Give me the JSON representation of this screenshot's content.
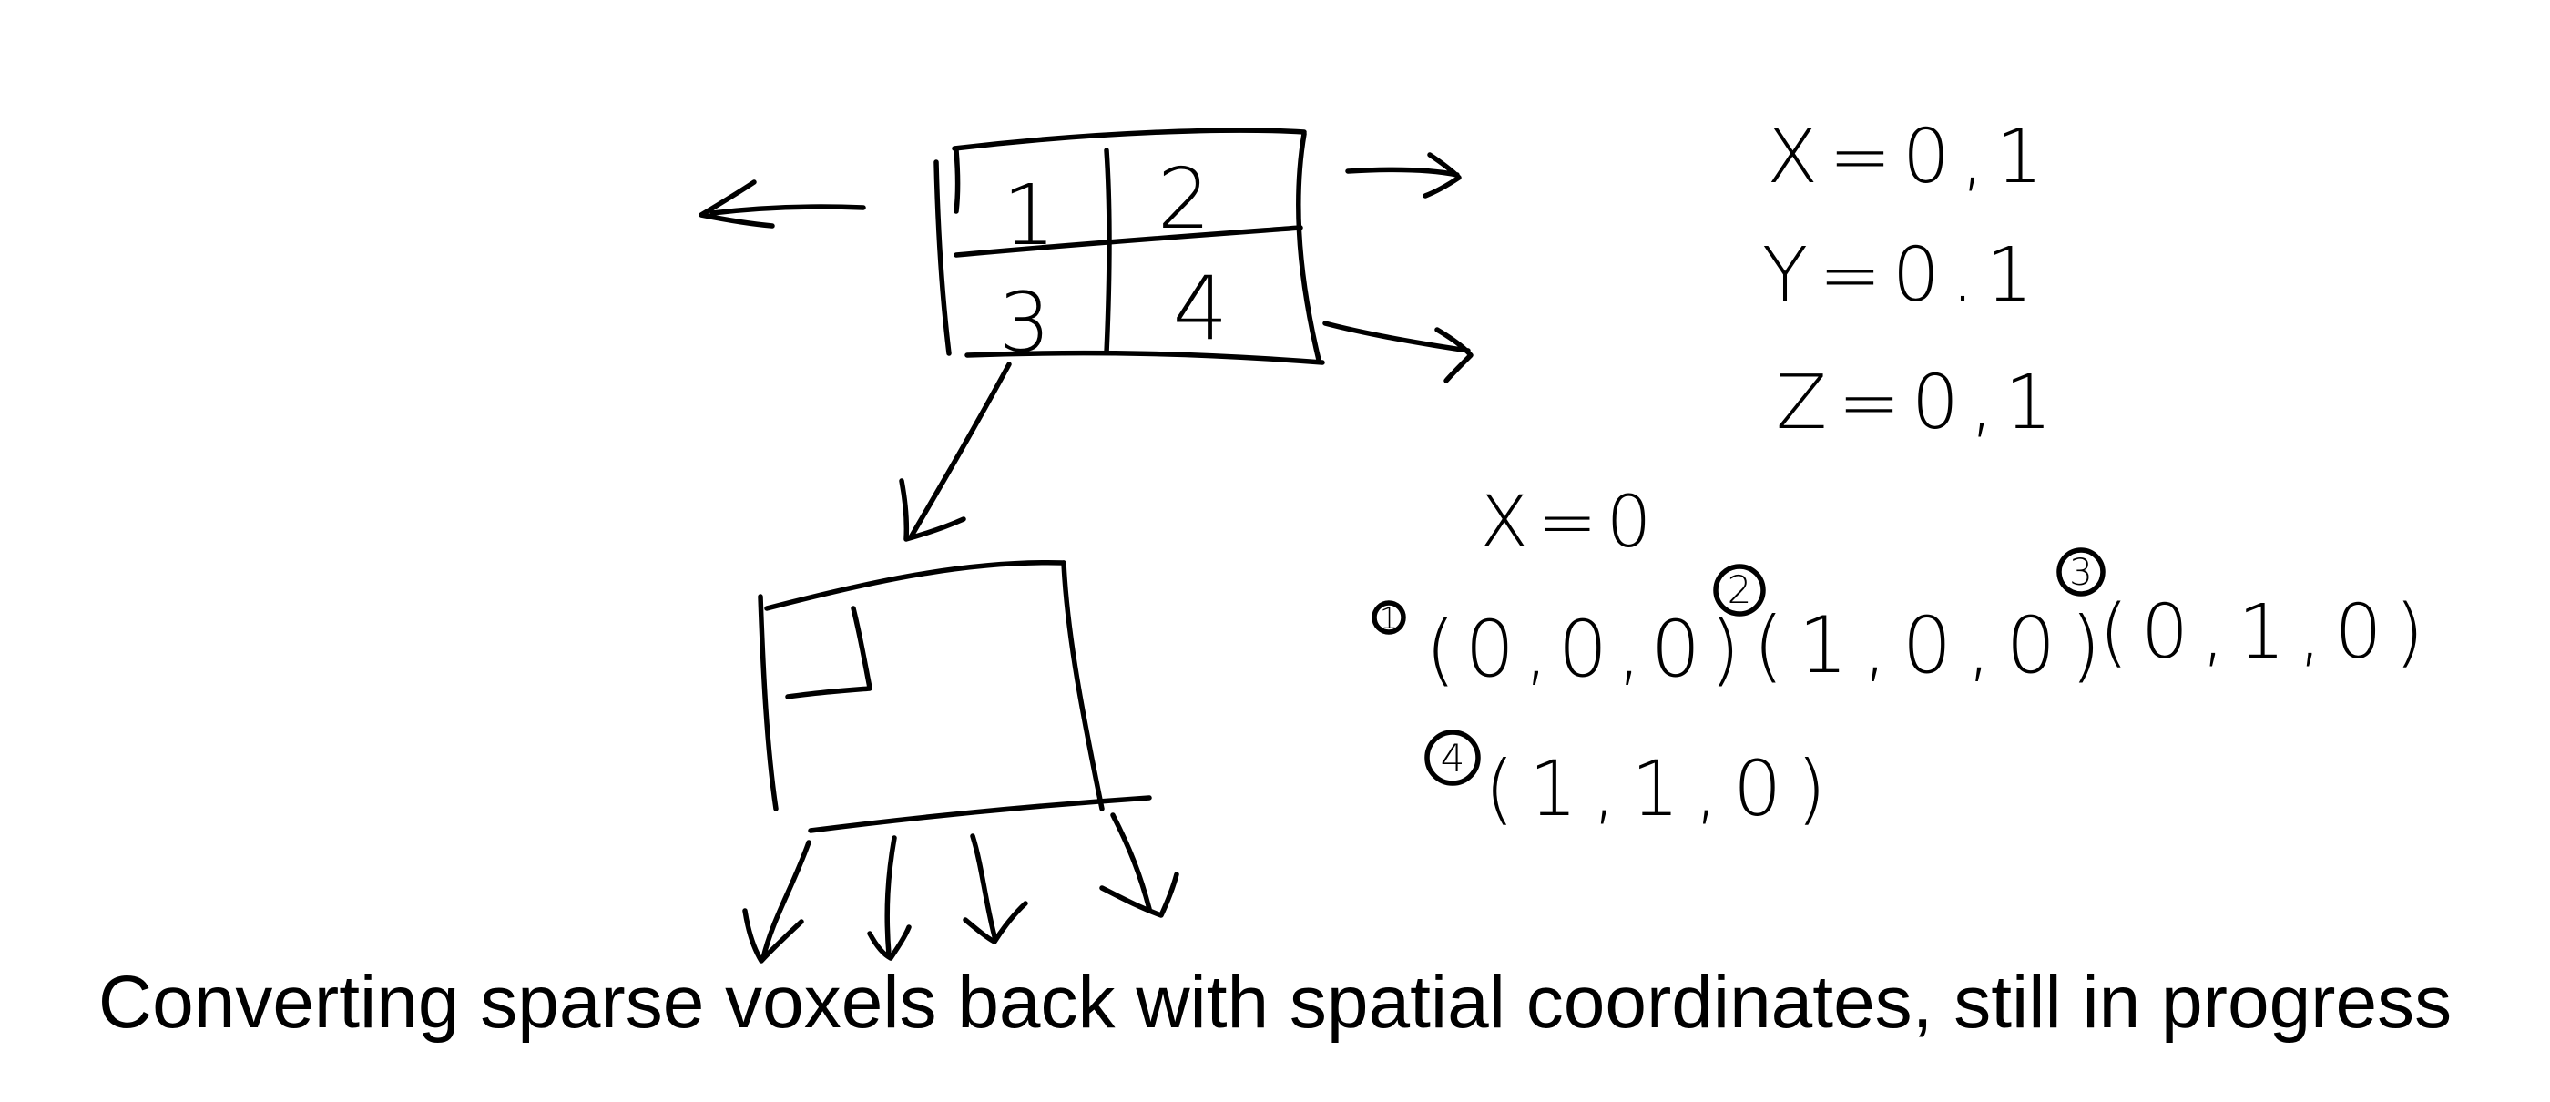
{
  "caption": "Converting sparse voxels back with spatial coordinates, still in progress",
  "parent_node": {
    "cells": [
      "1",
      "2",
      "3",
      "4"
    ]
  },
  "child_node": {
    "mark": "1"
  },
  "ranges": {
    "x": "X=0,1",
    "y": "Y=0.1",
    "z": "Z=0,1"
  },
  "fixed_axis": "X=0",
  "coordinates": [
    {
      "index": "1",
      "value": "(0,0,0)"
    },
    {
      "index": "2",
      "value": "(1,0,0)"
    },
    {
      "index": "3",
      "value": "(0,1,0)"
    },
    {
      "index": "4",
      "value": "(1,1,0)"
    }
  ],
  "ink_color": "#000000"
}
